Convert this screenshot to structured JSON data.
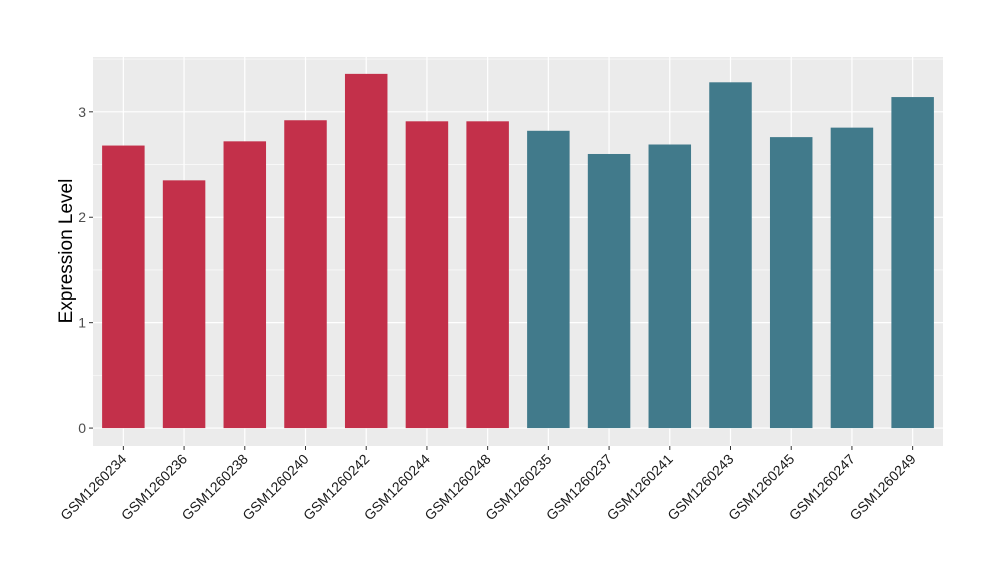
{
  "chart_data": {
    "type": "bar",
    "title": "",
    "xlabel": "",
    "ylabel": "Expression Level",
    "ylim": [
      -0.17,
      3.52
    ],
    "yticks": [
      0,
      1,
      2,
      3
    ],
    "grid": true,
    "legend": "none",
    "categories": [
      "GSM1260234",
      "GSM1260236",
      "GSM1260238",
      "GSM1260240",
      "GSM1260242",
      "GSM1260244",
      "GSM1260248",
      "GSM1260235",
      "GSM1260237",
      "GSM1260241",
      "GSM1260243",
      "GSM1260245",
      "GSM1260247",
      "GSM1260249"
    ],
    "values": [
      2.68,
      2.35,
      2.72,
      2.92,
      3.36,
      2.91,
      2.91,
      2.82,
      2.6,
      2.69,
      3.28,
      2.76,
      2.85,
      3.14
    ],
    "groups": [
      "A",
      "A",
      "A",
      "A",
      "A",
      "A",
      "A",
      "B",
      "B",
      "B",
      "B",
      "B",
      "B",
      "B"
    ],
    "colors": {
      "A": "#C3304A",
      "B": "#417A8B",
      "panel": "#EBEBEB",
      "grid": "#FFFFFF"
    }
  }
}
